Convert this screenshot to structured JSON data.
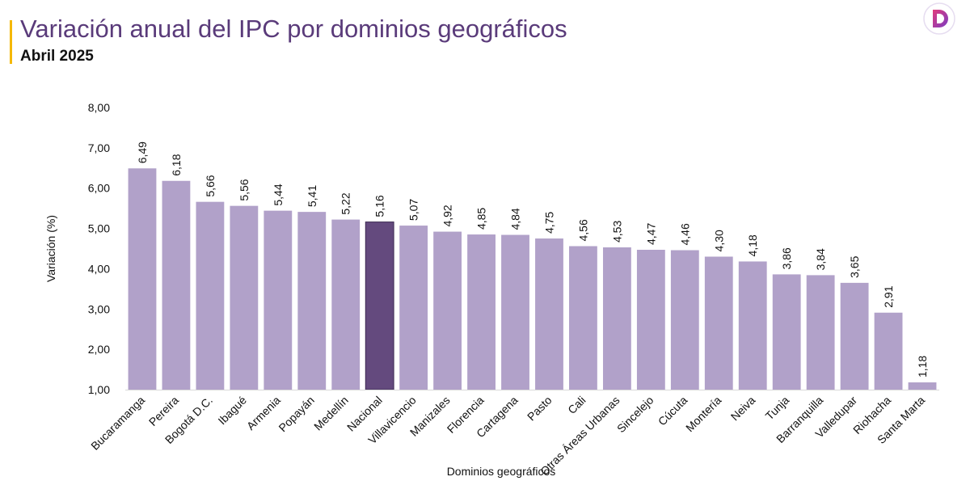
{
  "header": {
    "title": "Variación anual del IPC por dominios geográficos",
    "subtitle": "Abril 2025",
    "logo_icon": "d-logo-icon"
  },
  "colors": {
    "accent": "#f5b800",
    "bar": "#b1a1c9",
    "highlight": "#644a7e",
    "title": "#5a3b7a",
    "text": "#111111"
  },
  "chart_data": {
    "type": "bar",
    "xlabel": "Dominios geográficos",
    "ylabel": "Variación (%)",
    "ylim": [
      1,
      8
    ],
    "yticks": [
      "1,00",
      "2,00",
      "3,00",
      "4,00",
      "5,00",
      "6,00",
      "7,00",
      "8,00"
    ],
    "grid": false,
    "highlight_category": "Nacional",
    "categories": [
      "Bucaramanga",
      "Pereira",
      "Bogotá D.C.",
      "Ibagué",
      "Armenia",
      "Popayán",
      "Medellín",
      "Nacional",
      "Villavicencio",
      "Manizales",
      "Florencia",
      "Cartagena",
      "Pasto",
      "Cali",
      "Otras Áreas Urbanas",
      "Sincelejo",
      "Cúcuta",
      "Montería",
      "Neiva",
      "Tunja",
      "Barranquilla",
      "Valledupar",
      "Riohacha",
      "Santa Marta"
    ],
    "values": [
      6.49,
      6.18,
      5.66,
      5.56,
      5.44,
      5.41,
      5.22,
      5.16,
      5.07,
      4.92,
      4.85,
      4.84,
      4.75,
      4.56,
      4.53,
      4.47,
      4.46,
      4.3,
      4.18,
      3.86,
      3.84,
      3.65,
      2.91,
      1.18
    ],
    "data_labels": [
      "6,49",
      "6,18",
      "5,66",
      "5,56",
      "5,44",
      "5,41",
      "5,22",
      "5,16",
      "5,07",
      "4,92",
      "4,85",
      "4,84",
      "4,75",
      "4,56",
      "4,53",
      "4,47",
      "4,46",
      "4,30",
      "4,18",
      "3,86",
      "3,84",
      "3,65",
      "2,91",
      "1,18"
    ]
  }
}
